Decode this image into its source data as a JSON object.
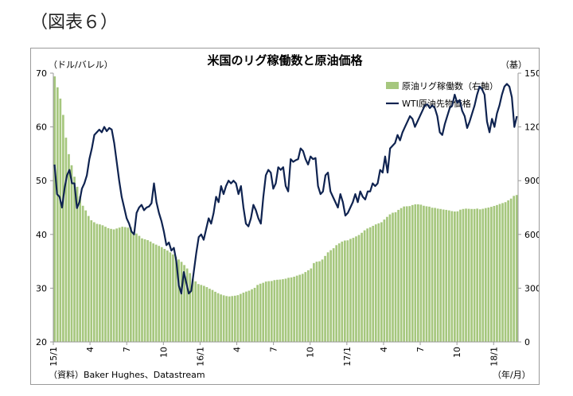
{
  "figure_label": "（図表６）",
  "chart_data": {
    "type": "bar+line",
    "title": "米国のリグ稼働数と原油価格",
    "left_axis": {
      "unit_label": "（ドル/バレル）",
      "ylim": [
        20,
        70
      ],
      "ticks": [
        20,
        30,
        40,
        50,
        60,
        70
      ]
    },
    "right_axis": {
      "unit_label": "（基）",
      "ylim": [
        0,
        1500
      ],
      "ticks": [
        0,
        300,
        600,
        900,
        1200,
        1500
      ]
    },
    "x_tick_labels": [
      "15/1",
      "4",
      "7",
      "10",
      "16/1",
      "4",
      "7",
      "10",
      "17/1",
      "4",
      "7",
      "10",
      "18/1"
    ],
    "x_unit_label": "（年/月）",
    "source": "（資料）Baker Hughes、Datastream",
    "series": [
      {
        "name": "原油リグ稼働数（右軸）",
        "type": "bar",
        "axis": "right",
        "color": "#a6c77e",
        "values": [
          1482,
          1421,
          1358,
          1267,
          1140,
          1048,
          986,
          922,
          866,
          813,
          760,
          734,
          703,
          679,
          668,
          659,
          656,
          651,
          643,
          635,
          631,
          628,
          633,
          638,
          643,
          641,
          638,
          640,
          614,
          605,
          592,
          578,
          573,
          568,
          560,
          550,
          543,
          536,
          529,
          519,
          510,
          500,
          488,
          476,
          460,
          447,
          429,
          410,
          384,
          352,
          338,
          323,
          318,
          313,
          306,
          297,
          290,
          280,
          272,
          265,
          260,
          256,
          254,
          256,
          258,
          261,
          268,
          275,
          281,
          286,
          294,
          302,
          318,
          325,
          330,
          337,
          339,
          340,
          345,
          347,
          348,
          350,
          353,
          358,
          360,
          364,
          370,
          375,
          380,
          390,
          400,
          410,
          440,
          448,
          450,
          460,
          480,
          500,
          512,
          523,
          540,
          550,
          560,
          566,
          567,
          575,
          581,
          589,
          597,
          609,
          623,
          633,
          640,
          648,
          656,
          662,
          668,
          683,
          698,
          712,
          721,
          724,
          737,
          747,
          756,
          757,
          758,
          764,
          768,
          768,
          766,
          760,
          757,
          755,
          749,
          748,
          744,
          742,
          739,
          737,
          734,
          730,
          728,
          729,
          738,
          742,
          744,
          743,
          742,
          742,
          744,
          740,
          743,
          747,
          750,
          754,
          759,
          764,
          770,
          775,
          780,
          790,
          800,
          815,
          820
        ]
      },
      {
        "name": "WTI原油先物価格",
        "type": "line",
        "axis": "left",
        "color": "#0f2350",
        "values": [
          53,
          47.5,
          47,
          45,
          48.5,
          51,
          52,
          49.5,
          49.5,
          44.9,
          46,
          48.5,
          49.5,
          51,
          54,
          56,
          58.5,
          59,
          59.5,
          59,
          60,
          59.2,
          59.8,
          59.5,
          57,
          53.5,
          50,
          47,
          45,
          43,
          42,
          40.5,
          40,
          44,
          45,
          45.5,
          44.5,
          45,
          45.2,
          45.8,
          49.5,
          46,
          44,
          42.5,
          40.5,
          38,
          38.5,
          37,
          37.5,
          35,
          30.5,
          29,
          33,
          31,
          29,
          29.5,
          33,
          36.5,
          39.5,
          40,
          39,
          41,
          43,
          42,
          44,
          47,
          46,
          49,
          47.5,
          49,
          50,
          49.5,
          50,
          49.5,
          47.5,
          49,
          45,
          42,
          41.5,
          43,
          45.5,
          44.5,
          43,
          42,
          47,
          51,
          52,
          51.5,
          48.5,
          49.5,
          52.5,
          52,
          52.5,
          49,
          48,
          54,
          53.5,
          53.8,
          54,
          56,
          55.5,
          54,
          53,
          54.5,
          54,
          54.2,
          49,
          47.5,
          48,
          51,
          51.5,
          48,
          47,
          46,
          45,
          47.5,
          46,
          43.5,
          44,
          45,
          46,
          47.5,
          46,
          48,
          47,
          46.5,
          48,
          48,
          49.5,
          49,
          49.5,
          52,
          51.5,
          54.5,
          51.5,
          56,
          56.5,
          57,
          58.5,
          57.5,
          59,
          60,
          61,
          62,
          61.5,
          60,
          61,
          62,
          63,
          64,
          64.2,
          63.5,
          64,
          63.5,
          62,
          59,
          58.5,
          60.5,
          62,
          63.5,
          64,
          66,
          64.5,
          65,
          63,
          62,
          59.8,
          61,
          62.5,
          64,
          66,
          67.5,
          67,
          66,
          61,
          59,
          61.5,
          60,
          62.5,
          64,
          66,
          67.5,
          68,
          67.5,
          65.5,
          60,
          62
        ]
      }
    ]
  }
}
